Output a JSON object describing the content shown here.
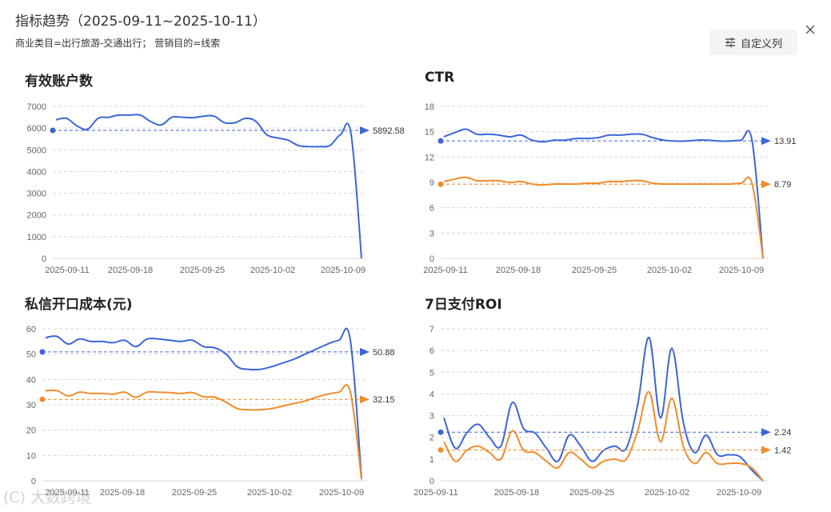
{
  "header": {
    "title": "指标趋势（2025-09-11~2025-10-11）",
    "filters": "商业类目=出行旅游-交通出行； 营销目的=线索",
    "custom_columns_label": "自定义列"
  },
  "watermark": "(C) 大数跨境",
  "colors": {
    "blue": "#3c66d8",
    "orange": "#f08c2c",
    "grid": "#d9d9d9",
    "axis_text": "#666666"
  },
  "charts": [
    {
      "title": "有效账户数",
      "type": "line",
      "ylim": [
        0,
        7000
      ],
      "yticks": [
        "0",
        "1000",
        "2000",
        "3000",
        "4000",
        "5000",
        "6000",
        "7000"
      ],
      "xticks": [
        "2025-09-11",
        "2025-09-18",
        "2025-09-25",
        "2025-10-02",
        "2025-10-09"
      ],
      "series": [
        {
          "values": [
            6380,
            6450,
            6100,
            5950,
            6450,
            6500,
            6600,
            6600,
            6600,
            6300,
            6150,
            6500,
            6500,
            6480,
            6550,
            6550,
            6250,
            6250,
            6450,
            6300,
            5700,
            5550,
            5450,
            5200,
            5150,
            5150,
            5200,
            5700,
            5750,
            0
          ],
          "avg": 5892.58,
          "avg_label": "5892.58"
        }
      ]
    },
    {
      "title": "CTR",
      "type": "line",
      "ylim": [
        0,
        18
      ],
      "yticks": [
        "0",
        "3",
        "6",
        "9",
        "12",
        "15",
        "18"
      ],
      "xticks": [
        "2025-09-11",
        "2025-09-18",
        "2025-09-25",
        "2025-10-02",
        "2025-10-09"
      ],
      "series": [
        {
          "values": [
            14.4,
            14.9,
            15.3,
            14.7,
            14.7,
            14.6,
            14.4,
            14.6,
            14.0,
            13.8,
            14.0,
            14.0,
            14.2,
            14.2,
            14.3,
            14.6,
            14.6,
            14.7,
            14.7,
            14.3,
            14.0,
            13.9,
            13.9,
            14.0,
            14.0,
            13.9,
            13.9,
            14.0,
            14.0,
            0
          ],
          "avg": 13.91,
          "avg_label": "13.91"
        },
        {
          "values": [
            9.1,
            9.4,
            9.6,
            9.2,
            9.2,
            9.2,
            9.0,
            9.1,
            8.8,
            8.7,
            8.8,
            8.8,
            8.8,
            8.9,
            8.9,
            9.1,
            9.1,
            9.2,
            9.2,
            8.9,
            8.8,
            8.8,
            8.8,
            8.8,
            8.8,
            8.8,
            8.8,
            8.9,
            8.9,
            0
          ],
          "avg": 8.79,
          "avg_label": "8.79"
        }
      ]
    },
    {
      "title": "私信开口成本(元)",
      "type": "line",
      "ylim": [
        0,
        60
      ],
      "yticks": [
        "0",
        "10",
        "20",
        "30",
        "40",
        "50",
        "60"
      ],
      "xticks": [
        "2025-09-11",
        "2025-09-18",
        "2025-09-25",
        "2025-10-02",
        "2025-10-09"
      ],
      "series": [
        {
          "values": [
            56.5,
            57,
            54,
            56,
            55,
            55,
            54.5,
            55.5,
            53,
            56,
            56,
            55.5,
            55,
            55.5,
            53,
            52.5,
            50,
            45,
            44,
            44,
            45,
            46.5,
            48,
            50,
            52,
            54,
            55.5,
            55.8,
            1
          ],
          "avg": 50.88,
          "avg_label": "50.88"
        },
        {
          "values": [
            35.5,
            35.6,
            33.5,
            35,
            34.5,
            34.5,
            34.2,
            35,
            33,
            35,
            35,
            34.8,
            34.5,
            34.8,
            33.2,
            33,
            31,
            28.5,
            28,
            28,
            28.5,
            29.5,
            30.5,
            31.5,
            33,
            34.2,
            35,
            35.2,
            0.5
          ],
          "avg": 32.15,
          "avg_label": "32.15"
        }
      ]
    },
    {
      "title": "7日支付ROI",
      "type": "line",
      "ylim": [
        0,
        7
      ],
      "yticks": [
        "0",
        "1",
        "2",
        "3",
        "4",
        "5",
        "6",
        "7"
      ],
      "xticks": [
        "2025-09-11",
        "2025-09-18",
        "2025-09-25",
        "2025-10-02",
        "2025-10-09"
      ],
      "series": [
        {
          "values": [
            2.9,
            1.5,
            2.2,
            2.6,
            2.0,
            1.6,
            3.6,
            2.4,
            2.2,
            1.5,
            0.9,
            2.1,
            1.6,
            0.9,
            1.4,
            1.6,
            1.5,
            3.5,
            6.6,
            2.9,
            6.1,
            2.7,
            1.3,
            2.1,
            1.2,
            1.2,
            1.1,
            0.5,
            0.0
          ],
          "avg": 2.24,
          "avg_label": "2.24"
        },
        {
          "values": [
            1.8,
            0.9,
            1.4,
            1.6,
            1.3,
            1.0,
            2.3,
            1.4,
            1.3,
            0.9,
            0.6,
            1.3,
            1.0,
            0.6,
            0.9,
            1.0,
            1.0,
            2.3,
            4.1,
            1.8,
            3.8,
            1.6,
            0.8,
            1.3,
            0.8,
            0.8,
            0.8,
            0.6,
            0.0
          ],
          "avg": 1.42,
          "avg_label": "1.42"
        }
      ]
    }
  ]
}
